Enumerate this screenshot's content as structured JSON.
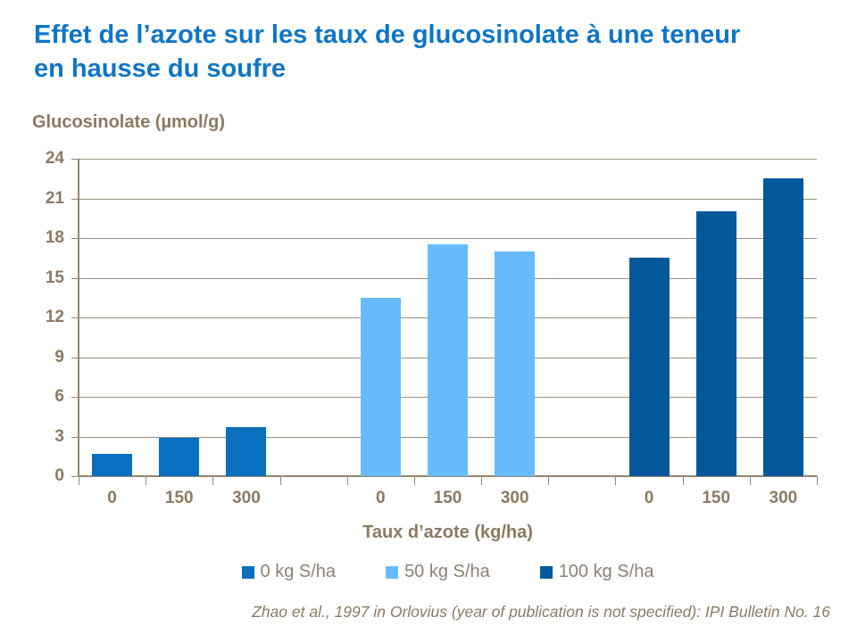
{
  "page": {
    "title_lines": [
      "Effet de l’azote sur les taux de glucosinolate à une teneur",
      "en hausse du soufre"
    ],
    "footer": "Zhao et al., 1997 in Orlovius (year of publication is not specified): IPI Bulletin No. 16"
  },
  "chart_data": {
    "type": "bar",
    "title": "Effet de l’azote sur les taux de glucosinolate à une teneur en hausse du soufre",
    "ylabel": "Glucosinolate (µmol/g)",
    "xlabel": "Taux d’azote (kg/ha)",
    "categories": [
      "0",
      "150",
      "300"
    ],
    "series": [
      {
        "name": "0 kg S/ha",
        "color": "#0A6FBE",
        "values": [
          1.7,
          2.9,
          3.7
        ]
      },
      {
        "name": "50 kg S/ha",
        "color": "#66BCFA",
        "values": [
          13.5,
          17.5,
          17.0
        ]
      },
      {
        "name": "100 kg S/ha",
        "color": "#03589B",
        "values": [
          16.5,
          20.0,
          22.5
        ]
      }
    ],
    "ylim": [
      0,
      24
    ],
    "yticks": [
      0,
      3,
      6,
      9,
      12,
      15,
      18,
      21,
      24
    ],
    "grid": true,
    "legend_position": "bottom"
  },
  "colors": {
    "title_text": "#0F75C5",
    "axis_text": "#8A7A63",
    "gridline": "#9C8F80",
    "legend_text": "#8A8275"
  }
}
